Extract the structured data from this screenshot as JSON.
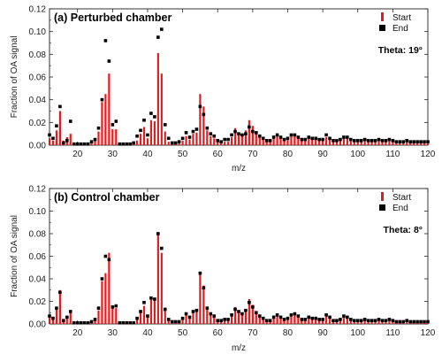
{
  "chart_data": [
    {
      "type": "bar",
      "title": "(a) Perturbed chamber",
      "xlabel": "m/z",
      "ylabel": "Fraction of OA signal",
      "xlim": [
        12,
        120
      ],
      "ylim": [
        0,
        0.12
      ],
      "xticks": [
        "20",
        "30",
        "40",
        "50",
        "60",
        "70",
        "80",
        "90",
        "100",
        "110",
        "120"
      ],
      "yticks": [
        "0.00",
        "0.02",
        "0.04",
        "0.06",
        "0.08",
        "0.10",
        "0.12"
      ],
      "annotation": "Theta: 19°",
      "legend_position": "top-right",
      "grid": false,
      "series": [
        {
          "name": "Start",
          "color": "#e41a1c",
          "marker": "bar",
          "x": [
            12,
            13,
            14,
            15,
            16,
            17,
            18,
            19,
            20,
            21,
            22,
            23,
            24,
            25,
            26,
            27,
            28,
            29,
            30,
            31,
            32,
            33,
            34,
            35,
            36,
            37,
            38,
            39,
            40,
            41,
            42,
            43,
            44,
            45,
            46,
            47,
            48,
            49,
            50,
            51,
            52,
            53,
            54,
            55,
            56,
            57,
            58,
            59,
            60,
            61,
            62,
            63,
            64,
            65,
            66,
            67,
            68,
            69,
            70,
            71,
            72,
            73,
            74,
            75,
            76,
            77,
            78,
            79,
            80,
            81,
            82,
            83,
            84,
            85,
            86,
            87,
            88,
            89,
            90,
            91,
            92,
            93,
            94,
            95,
            96,
            97,
            98,
            99,
            100,
            101,
            102,
            103,
            104,
            105,
            106,
            107,
            108,
            109,
            110,
            111,
            112,
            113,
            114,
            115,
            116,
            117,
            118,
            119,
            120
          ],
          "values": [
            0.006,
            0.004,
            0.013,
            0.03,
            0.004,
            0.007,
            0.01,
            0.001,
            0.0005,
            0.0005,
            0.0005,
            0.0005,
            0.002,
            0.004,
            0.012,
            0.038,
            0.045,
            0.063,
            0.014,
            0.014,
            0.001,
            0.001,
            0.0005,
            0.0005,
            0.001,
            0.004,
            0.01,
            0.016,
            0.006,
            0.022,
            0.021,
            0.081,
            0.063,
            0.012,
            0.003,
            0.001,
            0.001,
            0.002,
            0.004,
            0.008,
            0.005,
            0.01,
            0.011,
            0.045,
            0.034,
            0.013,
            0.008,
            0.006,
            0.003,
            0.002,
            0.003,
            0.003,
            0.007,
            0.015,
            0.011,
            0.009,
            0.013,
            0.022,
            0.017,
            0.01,
            0.007,
            0.005,
            0.003,
            0.003,
            0.006,
            0.008,
            0.006,
            0.004,
            0.005,
            0.008,
            0.009,
            0.007,
            0.004,
            0.004,
            0.006,
            0.005,
            0.005,
            0.004,
            0.004,
            0.007,
            0.005,
            0.003,
            0.003,
            0.004,
            0.006,
            0.006,
            0.004,
            0.003,
            0.003,
            0.003,
            0.004,
            0.003,
            0.003,
            0.003,
            0.004,
            0.003,
            0.003,
            0.004,
            0.003,
            0.002,
            0.002,
            0.002,
            0.003,
            0.002,
            0.002,
            0.002,
            0.002,
            0.002,
            0.002
          ]
        },
        {
          "name": "End",
          "color": "#000000",
          "marker": "square",
          "x": [
            12,
            13,
            14,
            15,
            16,
            17,
            18,
            19,
            20,
            21,
            22,
            23,
            24,
            25,
            26,
            27,
            28,
            29,
            30,
            31,
            32,
            33,
            34,
            35,
            36,
            37,
            38,
            39,
            40,
            41,
            42,
            43,
            44,
            45,
            46,
            47,
            48,
            49,
            50,
            51,
            52,
            53,
            54,
            55,
            56,
            57,
            58,
            59,
            60,
            61,
            62,
            63,
            64,
            65,
            66,
            67,
            68,
            69,
            70,
            71,
            72,
            73,
            74,
            75,
            76,
            77,
            78,
            79,
            80,
            81,
            82,
            83,
            84,
            85,
            86,
            87,
            88,
            89,
            90,
            91,
            92,
            93,
            94,
            95,
            96,
            97,
            98,
            99,
            100,
            101,
            102,
            103,
            104,
            105,
            106,
            107,
            108,
            109,
            110,
            111,
            112,
            113,
            114,
            115,
            116,
            117,
            118,
            119,
            120
          ],
          "values": [
            0.009,
            0.006,
            0.017,
            0.034,
            0.002,
            0.004,
            0.021,
            0.001,
            0.001,
            0.001,
            0.001,
            0.001,
            0.003,
            0.005,
            0.015,
            0.04,
            0.092,
            0.074,
            0.018,
            0.021,
            0.001,
            0.001,
            0.001,
            0.001,
            0.002,
            0.008,
            0.013,
            0.022,
            0.009,
            0.028,
            0.025,
            0.095,
            0.102,
            0.018,
            0.006,
            0.002,
            0.002,
            0.003,
            0.006,
            0.011,
            0.007,
            0.012,
            0.014,
            0.034,
            0.027,
            0.015,
            0.01,
            0.008,
            0.004,
            0.003,
            0.005,
            0.005,
            0.009,
            0.012,
            0.01,
            0.009,
            0.01,
            0.016,
            0.012,
            0.011,
            0.008,
            0.006,
            0.004,
            0.004,
            0.007,
            0.009,
            0.007,
            0.005,
            0.006,
            0.009,
            0.009,
            0.007,
            0.005,
            0.005,
            0.007,
            0.006,
            0.006,
            0.005,
            0.005,
            0.009,
            0.006,
            0.004,
            0.004,
            0.005,
            0.007,
            0.007,
            0.005,
            0.004,
            0.004,
            0.004,
            0.005,
            0.004,
            0.004,
            0.004,
            0.005,
            0.004,
            0.004,
            0.005,
            0.004,
            0.003,
            0.003,
            0.003,
            0.004,
            0.003,
            0.003,
            0.003,
            0.003,
            0.003,
            0.003
          ]
        }
      ]
    },
    {
      "type": "bar",
      "title": "(b) Control chamber",
      "xlabel": "m/z",
      "ylabel": "Fraction of OA signal",
      "xlim": [
        12,
        120
      ],
      "ylim": [
        0,
        0.12
      ],
      "xticks": [
        "20",
        "30",
        "40",
        "50",
        "60",
        "70",
        "80",
        "90",
        "100",
        "110",
        "120"
      ],
      "yticks": [
        "0.00",
        "0.02",
        "0.04",
        "0.06",
        "0.08",
        "0.10",
        "0.12"
      ],
      "annotation": "Theta: 8°",
      "legend_position": "top-right",
      "grid": false,
      "series": [
        {
          "name": "Start",
          "color": "#e41a1c",
          "marker": "bar",
          "x": [
            12,
            13,
            14,
            15,
            16,
            17,
            18,
            19,
            20,
            21,
            22,
            23,
            24,
            25,
            26,
            27,
            28,
            29,
            30,
            31,
            32,
            33,
            34,
            35,
            36,
            37,
            38,
            39,
            40,
            41,
            42,
            43,
            44,
            45,
            46,
            47,
            48,
            49,
            50,
            51,
            52,
            53,
            54,
            55,
            56,
            57,
            58,
            59,
            60,
            61,
            62,
            63,
            64,
            65,
            66,
            67,
            68,
            69,
            70,
            71,
            72,
            73,
            74,
            75,
            76,
            77,
            78,
            79,
            80,
            81,
            82,
            83,
            84,
            85,
            86,
            87,
            88,
            89,
            90,
            91,
            92,
            93,
            94,
            95,
            96,
            97,
            98,
            99,
            100,
            101,
            102,
            103,
            104,
            105,
            106,
            107,
            108,
            109,
            110,
            111,
            112,
            113,
            114,
            115,
            116,
            117,
            118,
            119,
            120
          ],
          "values": [
            0.006,
            0.004,
            0.013,
            0.03,
            0.004,
            0.007,
            0.01,
            0.001,
            0.0005,
            0.0005,
            0.0005,
            0.0005,
            0.002,
            0.004,
            0.012,
            0.038,
            0.045,
            0.063,
            0.014,
            0.014,
            0.001,
            0.001,
            0.0005,
            0.0005,
            0.001,
            0.004,
            0.01,
            0.016,
            0.006,
            0.022,
            0.021,
            0.081,
            0.063,
            0.012,
            0.003,
            0.001,
            0.001,
            0.002,
            0.004,
            0.008,
            0.005,
            0.01,
            0.011,
            0.045,
            0.034,
            0.013,
            0.008,
            0.006,
            0.003,
            0.002,
            0.003,
            0.003,
            0.007,
            0.015,
            0.011,
            0.009,
            0.013,
            0.022,
            0.017,
            0.01,
            0.007,
            0.005,
            0.003,
            0.003,
            0.006,
            0.008,
            0.006,
            0.004,
            0.005,
            0.008,
            0.009,
            0.007,
            0.004,
            0.004,
            0.006,
            0.005,
            0.005,
            0.004,
            0.004,
            0.007,
            0.005,
            0.003,
            0.003,
            0.004,
            0.006,
            0.006,
            0.004,
            0.003,
            0.003,
            0.003,
            0.004,
            0.003,
            0.003,
            0.003,
            0.004,
            0.003,
            0.003,
            0.004,
            0.003,
            0.002,
            0.002,
            0.002,
            0.003,
            0.002,
            0.002,
            0.002,
            0.002,
            0.002,
            0.002
          ]
        },
        {
          "name": "End",
          "color": "#000000",
          "marker": "square",
          "x": [
            12,
            13,
            14,
            15,
            16,
            17,
            18,
            19,
            20,
            21,
            22,
            23,
            24,
            25,
            26,
            27,
            28,
            29,
            30,
            31,
            32,
            33,
            34,
            35,
            36,
            37,
            38,
            39,
            40,
            41,
            42,
            43,
            44,
            45,
            46,
            47,
            48,
            49,
            50,
            51,
            52,
            53,
            54,
            55,
            56,
            57,
            58,
            59,
            60,
            61,
            62,
            63,
            64,
            65,
            66,
            67,
            68,
            69,
            70,
            71,
            72,
            73,
            74,
            75,
            76,
            77,
            78,
            79,
            80,
            81,
            82,
            83,
            84,
            85,
            86,
            87,
            88,
            89,
            90,
            91,
            92,
            93,
            94,
            95,
            96,
            97,
            98,
            99,
            100,
            101,
            102,
            103,
            104,
            105,
            106,
            107,
            108,
            109,
            110,
            111,
            112,
            113,
            114,
            115,
            116,
            117,
            118,
            119,
            120
          ],
          "values": [
            0.007,
            0.005,
            0.014,
            0.028,
            0.003,
            0.006,
            0.011,
            0.001,
            0.001,
            0.001,
            0.001,
            0.001,
            0.002,
            0.004,
            0.014,
            0.04,
            0.06,
            0.057,
            0.015,
            0.016,
            0.001,
            0.001,
            0.001,
            0.001,
            0.001,
            0.005,
            0.011,
            0.019,
            0.007,
            0.023,
            0.022,
            0.08,
            0.067,
            0.013,
            0.004,
            0.002,
            0.002,
            0.002,
            0.005,
            0.009,
            0.006,
            0.011,
            0.012,
            0.045,
            0.032,
            0.014,
            0.009,
            0.007,
            0.003,
            0.003,
            0.004,
            0.004,
            0.008,
            0.013,
            0.011,
            0.009,
            0.012,
            0.019,
            0.015,
            0.01,
            0.007,
            0.005,
            0.003,
            0.003,
            0.006,
            0.008,
            0.006,
            0.004,
            0.005,
            0.008,
            0.009,
            0.007,
            0.004,
            0.004,
            0.006,
            0.005,
            0.005,
            0.004,
            0.004,
            0.008,
            0.006,
            0.003,
            0.003,
            0.004,
            0.007,
            0.006,
            0.004,
            0.003,
            0.003,
            0.003,
            0.004,
            0.003,
            0.003,
            0.003,
            0.004,
            0.003,
            0.003,
            0.004,
            0.003,
            0.002,
            0.002,
            0.002,
            0.003,
            0.002,
            0.002,
            0.002,
            0.002,
            0.002,
            0.002
          ]
        }
      ]
    }
  ]
}
